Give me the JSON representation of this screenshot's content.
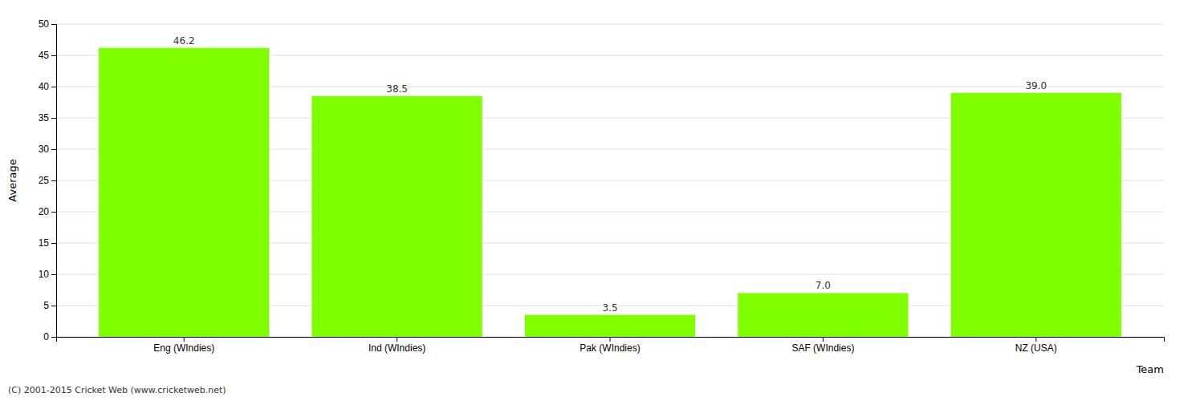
{
  "chart_data": {
    "type": "bar",
    "categories": [
      "Eng (WIndies)",
      "Ind (WIndies)",
      "Pak (WIndies)",
      "SAF (WIndies)",
      "NZ (USA)"
    ],
    "values": [
      46.2,
      38.5,
      3.5,
      7.0,
      39.0
    ],
    "value_labels": [
      "46.2",
      "38.5",
      "3.5",
      "7.0",
      "39.0"
    ],
    "data_labels": true,
    "color": "#7fff00",
    "x_label": "Team",
    "y_label": "Average",
    "ylim": [
      0,
      50
    ],
    "yticks": [
      0,
      5,
      10,
      15,
      20,
      25,
      30,
      35,
      40,
      45,
      50
    ],
    "grid": true,
    "annotations": [
      "(C) 2001-2015 Cricket Web (www.cricketweb.net)"
    ]
  }
}
